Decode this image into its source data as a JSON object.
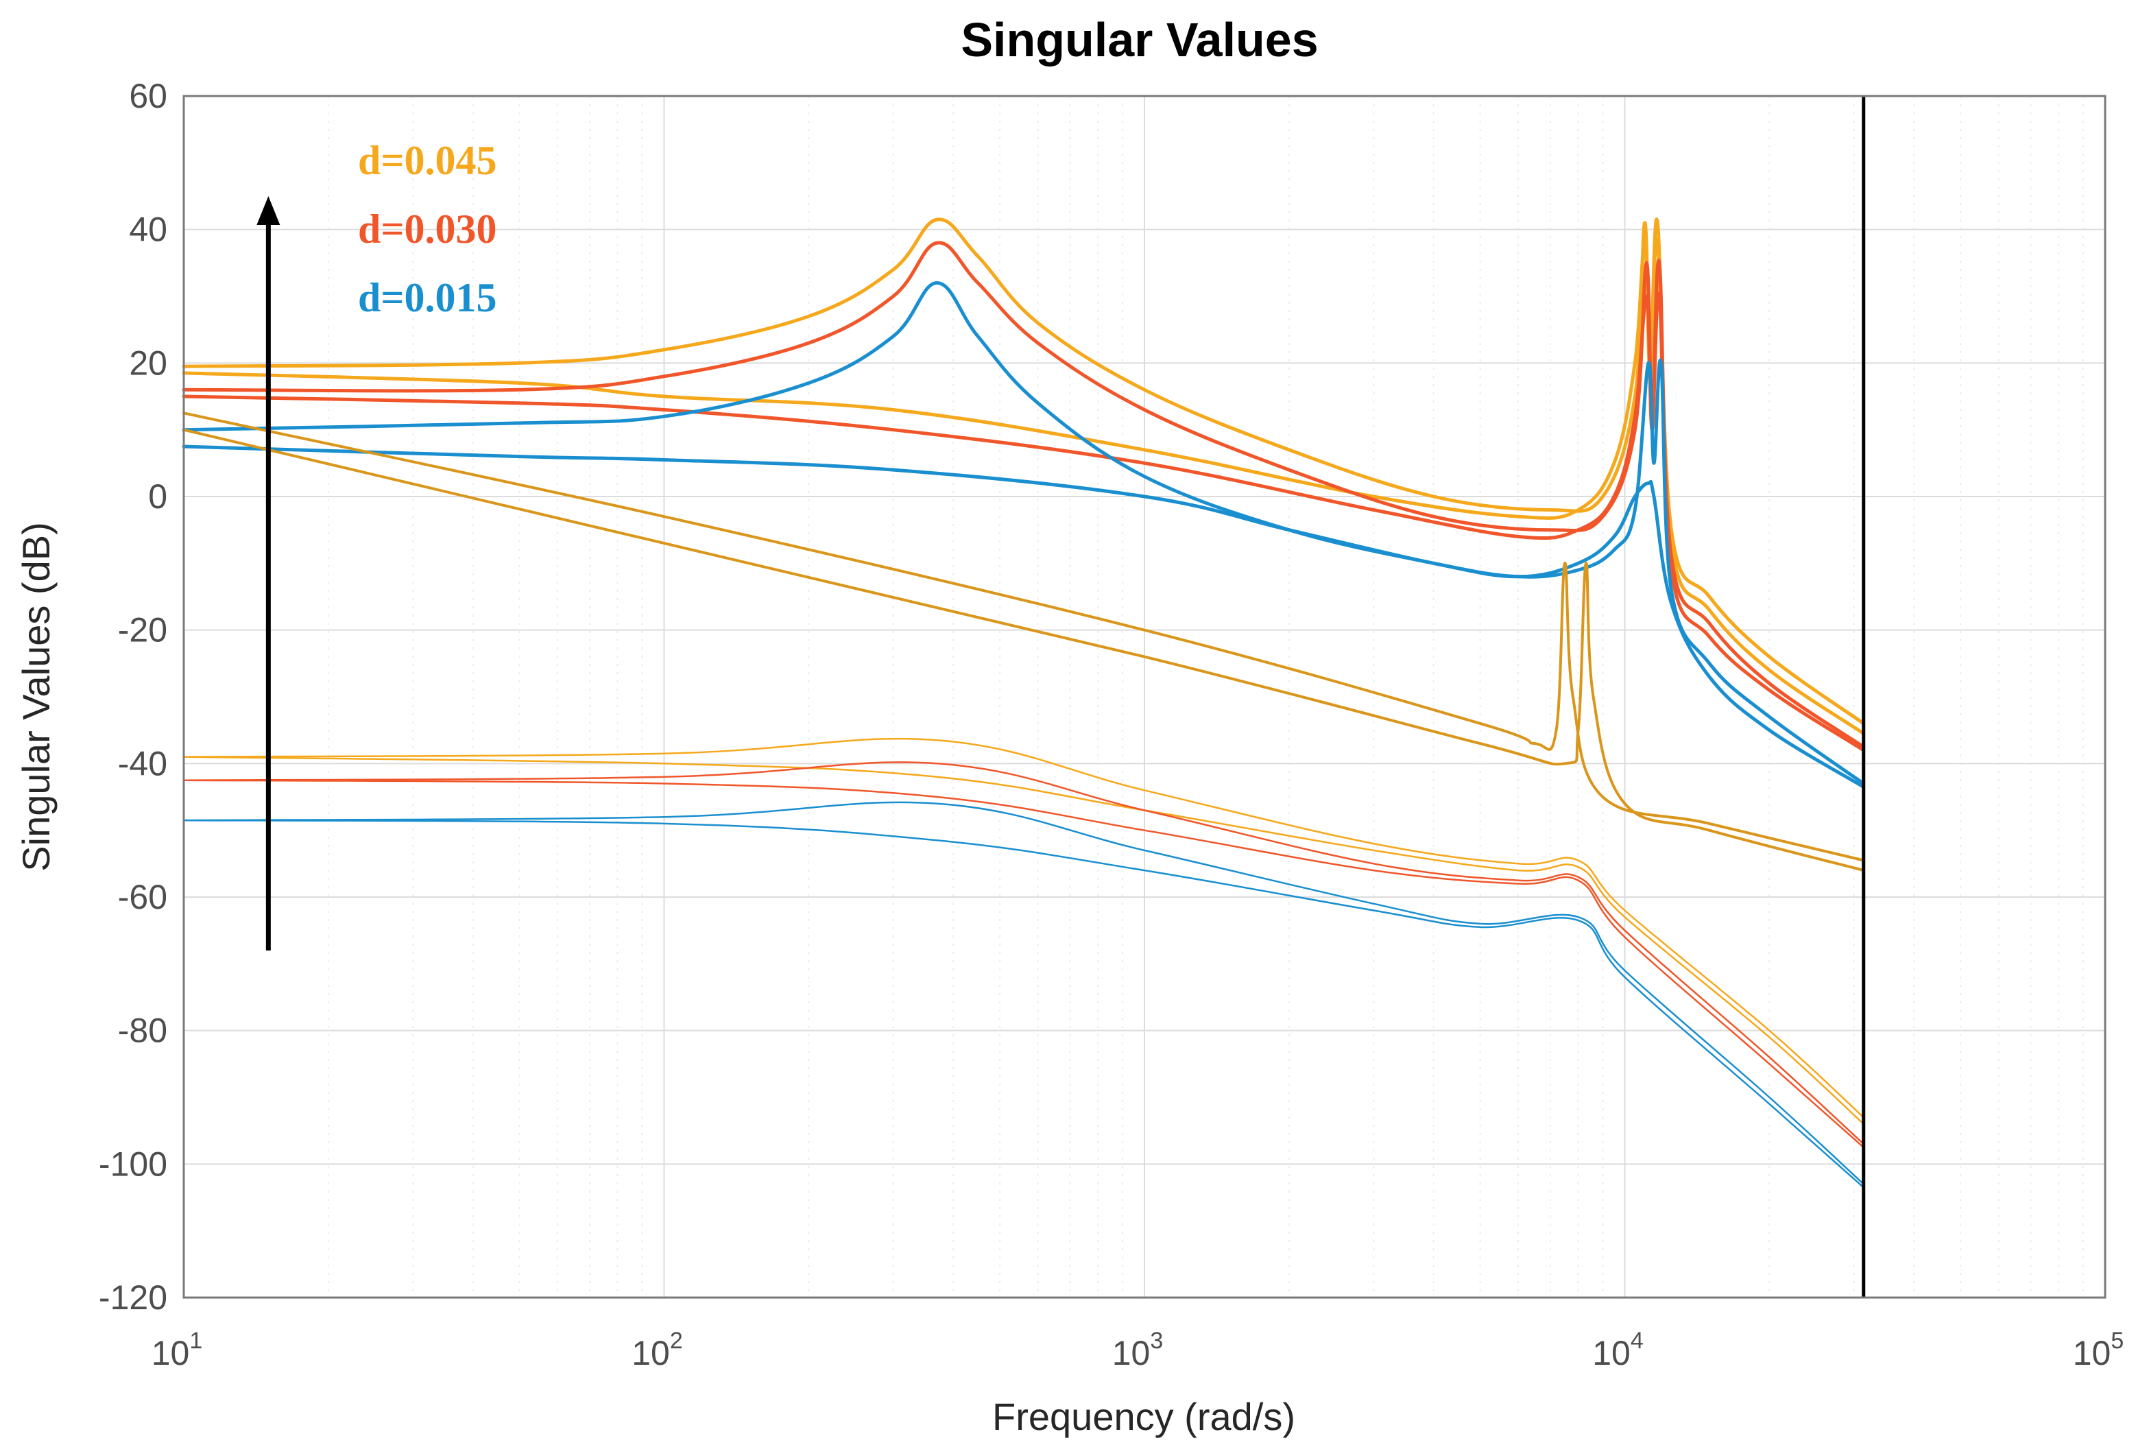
{
  "chart_data": {
    "type": "line",
    "title": "Singular Values",
    "xlabel": "Frequency (rad/s)",
    "ylabel": "Singular Values (dB)",
    "xscale": "log",
    "xlim": [
      10,
      100000
    ],
    "ylim": [
      -120,
      60
    ],
    "grid": true,
    "x_tick_labels": [
      {
        "value": 10,
        "base": "10",
        "exp": "1"
      },
      {
        "value": 100,
        "base": "10",
        "exp": "2"
      },
      {
        "value": 1000,
        "base": "10",
        "exp": "3"
      },
      {
        "value": 10000,
        "base": "10",
        "exp": "4"
      },
      {
        "value": 100000,
        "base": "10",
        "exp": "5"
      }
    ],
    "y_ticks": [
      60,
      40,
      20,
      0,
      -20,
      -40,
      -60,
      -80,
      -100,
      -120
    ],
    "vertical_marker": {
      "x": 31416,
      "color": "#000000"
    },
    "annotation_arrow": {
      "x": 15,
      "y_from": -68,
      "y_to": 45,
      "note": "increasing d"
    },
    "legend": [
      {
        "label": "d=0.045",
        "color": "#F5A81C"
      },
      {
        "label": "d=0.030",
        "color": "#F0562A"
      },
      {
        "label": "d=0.015",
        "color": "#1A8FD0"
      }
    ],
    "series": [
      {
        "name": "d=0.045 sv1",
        "color": "#F5A81C",
        "width": 5,
        "points": [
          [
            10,
            19.5
          ],
          [
            50,
            20
          ],
          [
            100,
            22
          ],
          [
            200,
            27
          ],
          [
            300,
            34
          ],
          [
            370,
            41.5
          ],
          [
            450,
            36
          ],
          [
            600,
            26
          ],
          [
            1000,
            16
          ],
          [
            2000,
            7
          ],
          [
            4000,
            0
          ],
          [
            7000,
            -2
          ],
          [
            9000,
            0
          ],
          [
            10500,
            15
          ],
          [
            11000,
            41
          ],
          [
            11300,
            20
          ],
          [
            11700,
            41
          ],
          [
            12500,
            -5
          ],
          [
            15000,
            -15
          ],
          [
            20000,
            -24
          ],
          [
            31416,
            -34
          ]
        ]
      },
      {
        "name": "d=0.045 sv2",
        "color": "#F5A81C",
        "width": 5,
        "points": [
          [
            10,
            18.5
          ],
          [
            50,
            17
          ],
          [
            100,
            15
          ],
          [
            300,
            13
          ],
          [
            1000,
            7
          ],
          [
            3000,
            0
          ],
          [
            6000,
            -3
          ],
          [
            8000,
            -2
          ],
          [
            9500,
            5
          ],
          [
            10500,
            20
          ],
          [
            11000,
            38
          ],
          [
            11300,
            18
          ],
          [
            11700,
            38
          ],
          [
            12500,
            -7
          ],
          [
            15000,
            -17
          ],
          [
            20000,
            -26
          ],
          [
            31416,
            -35.5
          ]
        ]
      },
      {
        "name": "d=0.030 sv1",
        "color": "#F0562A",
        "width": 5,
        "points": [
          [
            10,
            16
          ],
          [
            50,
            16
          ],
          [
            100,
            18
          ],
          [
            200,
            23
          ],
          [
            300,
            30
          ],
          [
            370,
            38
          ],
          [
            450,
            32
          ],
          [
            600,
            23
          ],
          [
            1000,
            13
          ],
          [
            2000,
            4
          ],
          [
            4000,
            -3
          ],
          [
            7000,
            -5
          ],
          [
            9000,
            -3
          ],
          [
            10500,
            10
          ],
          [
            11100,
            35
          ],
          [
            11400,
            12
          ],
          [
            11800,
            35
          ],
          [
            12500,
            -9
          ],
          [
            15000,
            -19
          ],
          [
            20000,
            -28
          ],
          [
            31416,
            -37.5
          ]
        ]
      },
      {
        "name": "d=0.030 sv2",
        "color": "#F0562A",
        "width": 5,
        "points": [
          [
            10,
            15
          ],
          [
            50,
            14
          ],
          [
            100,
            13
          ],
          [
            300,
            10
          ],
          [
            1000,
            5
          ],
          [
            3000,
            -2
          ],
          [
            6000,
            -6
          ],
          [
            8000,
            -5
          ],
          [
            9500,
            0
          ],
          [
            10500,
            12
          ],
          [
            11100,
            30
          ],
          [
            11400,
            10
          ],
          [
            11800,
            30
          ],
          [
            12500,
            -11
          ],
          [
            15000,
            -21
          ],
          [
            20000,
            -29
          ],
          [
            31416,
            -38
          ]
        ]
      },
      {
        "name": "d=0.015 sv1",
        "color": "#1A8FD0",
        "width": 5,
        "points": [
          [
            10,
            10
          ],
          [
            50,
            11
          ],
          [
            100,
            12
          ],
          [
            200,
            17
          ],
          [
            300,
            24
          ],
          [
            370,
            32
          ],
          [
            450,
            24
          ],
          [
            600,
            14
          ],
          [
            1000,
            3
          ],
          [
            2000,
            -5
          ],
          [
            4000,
            -10
          ],
          [
            6000,
            -12
          ],
          [
            8000,
            -11
          ],
          [
            9500,
            -8
          ],
          [
            10500,
            -2
          ],
          [
            11200,
            20
          ],
          [
            11500,
            5
          ],
          [
            11900,
            20
          ],
          [
            12500,
            -14
          ],
          [
            15000,
            -25
          ],
          [
            20000,
            -33
          ],
          [
            31416,
            -43
          ]
        ]
      },
      {
        "name": "d=0.015 sv2",
        "color": "#1A8FD0",
        "width": 5,
        "points": [
          [
            10,
            7.5
          ],
          [
            50,
            6
          ],
          [
            100,
            5.5
          ],
          [
            300,
            4
          ],
          [
            1000,
            0
          ],
          [
            2000,
            -5
          ],
          [
            4000,
            -10
          ],
          [
            6000,
            -12
          ],
          [
            8000,
            -10
          ],
          [
            9500,
            -6
          ],
          [
            10500,
            0
          ],
          [
            11200,
            2
          ],
          [
            11500,
            0
          ],
          [
            12500,
            -16
          ],
          [
            15000,
            -27
          ],
          [
            20000,
            -35
          ],
          [
            31416,
            -43.5
          ]
        ]
      },
      {
        "name": "diag line 1",
        "color": "#D9961B",
        "width": 4,
        "points": [
          [
            10,
            12.5
          ],
          [
            100,
            -3
          ],
          [
            1000,
            -20
          ],
          [
            5000,
            -34
          ],
          [
            6500,
            -37
          ],
          [
            7200,
            -35
          ],
          [
            7500,
            -10
          ],
          [
            7800,
            -30
          ],
          [
            9000,
            -45
          ],
          [
            15000,
            -49
          ],
          [
            31416,
            -54.5
          ]
        ]
      },
      {
        "name": "diag line 2",
        "color": "#D9961B",
        "width": 4,
        "points": [
          [
            10,
            10
          ],
          [
            100,
            -7
          ],
          [
            1000,
            -24
          ],
          [
            5000,
            -37
          ],
          [
            7500,
            -40
          ],
          [
            8000,
            -35
          ],
          [
            8300,
            -10
          ],
          [
            8600,
            -30
          ],
          [
            10000,
            -46
          ],
          [
            15000,
            -50
          ],
          [
            31416,
            -56
          ]
        ]
      },
      {
        "name": "d=0.045 sv3",
        "color": "#F5A81C",
        "width": 2.5,
        "points": [
          [
            10,
            -39
          ],
          [
            100,
            -38.5
          ],
          [
            370,
            -36.5
          ],
          [
            1000,
            -44
          ],
          [
            3000,
            -52
          ],
          [
            6000,
            -55
          ],
          [
            8000,
            -54.5
          ],
          [
            10000,
            -62
          ],
          [
            20000,
            -80
          ],
          [
            31416,
            -93
          ]
        ]
      },
      {
        "name": "d=0.045 sv4",
        "color": "#F5A81C",
        "width": 2.5,
        "points": [
          [
            10,
            -39
          ],
          [
            100,
            -40
          ],
          [
            370,
            -42
          ],
          [
            1000,
            -47
          ],
          [
            3000,
            -53
          ],
          [
            6000,
            -56
          ],
          [
            8000,
            -55.5
          ],
          [
            10000,
            -63
          ],
          [
            20000,
            -81
          ],
          [
            31416,
            -94
          ]
        ]
      },
      {
        "name": "d=0.030 sv3",
        "color": "#F0562A",
        "width": 2.5,
        "points": [
          [
            10,
            -42.5
          ],
          [
            100,
            -42
          ],
          [
            370,
            -40
          ],
          [
            1000,
            -47
          ],
          [
            3000,
            -55
          ],
          [
            6000,
            -57.5
          ],
          [
            8000,
            -57
          ],
          [
            10000,
            -65
          ],
          [
            20000,
            -84
          ],
          [
            31416,
            -97
          ]
        ]
      },
      {
        "name": "d=0.030 sv4",
        "color": "#F0562A",
        "width": 2.5,
        "points": [
          [
            10,
            -42.5
          ],
          [
            100,
            -43
          ],
          [
            370,
            -45
          ],
          [
            1000,
            -50
          ],
          [
            3000,
            -56
          ],
          [
            6000,
            -58
          ],
          [
            8000,
            -57.5
          ],
          [
            10000,
            -66
          ],
          [
            20000,
            -85
          ],
          [
            31416,
            -97.5
          ]
        ]
      },
      {
        "name": "d=0.015 sv3",
        "color": "#1A8FD0",
        "width": 2.5,
        "points": [
          [
            10,
            -48.5
          ],
          [
            100,
            -48
          ],
          [
            370,
            -46
          ],
          [
            1000,
            -53
          ],
          [
            3000,
            -61
          ],
          [
            5000,
            -64
          ],
          [
            8000,
            -63
          ],
          [
            10000,
            -71
          ],
          [
            20000,
            -90
          ],
          [
            31416,
            -103
          ]
        ]
      },
      {
        "name": "d=0.015 sv4",
        "color": "#1A8FD0",
        "width": 2.5,
        "points": [
          [
            10,
            -48.5
          ],
          [
            100,
            -49
          ],
          [
            370,
            -51.5
          ],
          [
            1000,
            -56
          ],
          [
            3000,
            -62
          ],
          [
            5000,
            -64.5
          ],
          [
            8000,
            -63.5
          ],
          [
            10000,
            -72
          ],
          [
            20000,
            -91
          ],
          [
            31416,
            -103.5
          ]
        ]
      }
    ]
  }
}
